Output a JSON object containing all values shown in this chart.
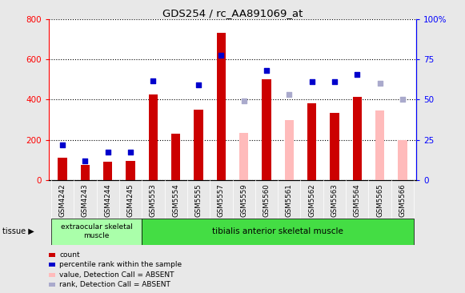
{
  "title": "GDS254 / rc_AA891069_at",
  "samples": [
    "GSM4242",
    "GSM4243",
    "GSM4244",
    "GSM4245",
    "GSM5553",
    "GSM5554",
    "GSM5555",
    "GSM5557",
    "GSM5559",
    "GSM5560",
    "GSM5561",
    "GSM5562",
    "GSM5563",
    "GSM5564",
    "GSM5565",
    "GSM5566"
  ],
  "bar_values": [
    110,
    75,
    90,
    95,
    425,
    230,
    350,
    730,
    null,
    500,
    null,
    380,
    335,
    415,
    null,
    null
  ],
  "bar_values_abs": [
    null,
    null,
    null,
    null,
    null,
    null,
    null,
    null,
    235,
    null,
    300,
    null,
    null,
    null,
    345,
    200
  ],
  "dot_values": [
    175,
    95,
    140,
    140,
    495,
    null,
    475,
    620,
    null,
    545,
    null,
    490,
    490,
    525,
    null,
    null
  ],
  "dot_values_abs": [
    null,
    null,
    null,
    null,
    null,
    null,
    null,
    null,
    395,
    null,
    425,
    null,
    null,
    null,
    480,
    400
  ],
  "bar_color": "#cc0000",
  "bar_abs_color": "#ffbbbb",
  "dot_color": "#0000cc",
  "dot_abs_color": "#aaaacc",
  "ylim_left": [
    0,
    800
  ],
  "ylim_right": [
    0,
    100
  ],
  "yticks_left": [
    0,
    200,
    400,
    600,
    800
  ],
  "yticks_right": [
    0,
    25,
    50,
    75,
    100
  ],
  "ytick_labels_right": [
    "0",
    "25",
    "50",
    "75",
    "100%"
  ],
  "group1_count": 4,
  "group1_label": "extraocular skeletal\nmuscle",
  "group2_label": "tibialis anterior skeletal muscle",
  "tissue_label": "tissue",
  "legend_items": [
    {
      "label": "count",
      "color": "#cc0000"
    },
    {
      "label": "percentile rank within the sample",
      "color": "#0000cc"
    },
    {
      "label": "value, Detection Call = ABSENT",
      "color": "#ffbbbb"
    },
    {
      "label": "rank, Detection Call = ABSENT",
      "color": "#aaaacc"
    }
  ],
  "fig_bg": "#e8e8e8",
  "plot_bg": "#ffffff",
  "xticklabel_bg": "#d0d0d0",
  "group1_bg": "#aaffaa",
  "group2_bg": "#44dd44"
}
